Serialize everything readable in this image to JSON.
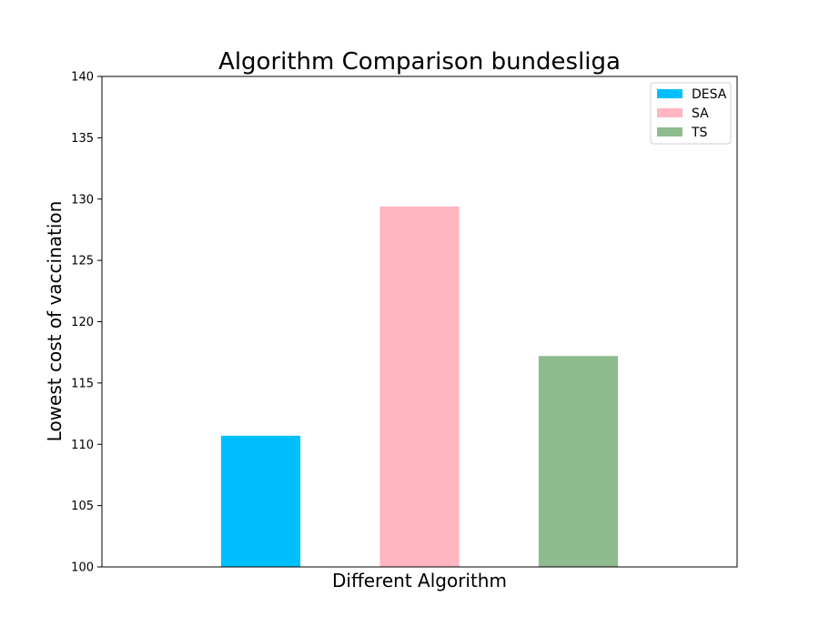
{
  "chart_data": {
    "type": "bar",
    "title": "Algorithm Comparison bundesliga",
    "xlabel": "Different Algorithm",
    "ylabel": "Lowest cost of vaccination",
    "ylim": [
      100,
      140
    ],
    "yticks": [
      100,
      105,
      110,
      115,
      120,
      125,
      130,
      135,
      140
    ],
    "grid": false,
    "legend_position": "top-right",
    "series": [
      {
        "name": "DESA",
        "value": 110.7,
        "color": "#00BFFF"
      },
      {
        "name": "SA",
        "value": 129.4,
        "color": "#FFB6C1"
      },
      {
        "name": "TS",
        "value": 117.2,
        "color": "#8FBC8F"
      }
    ]
  }
}
